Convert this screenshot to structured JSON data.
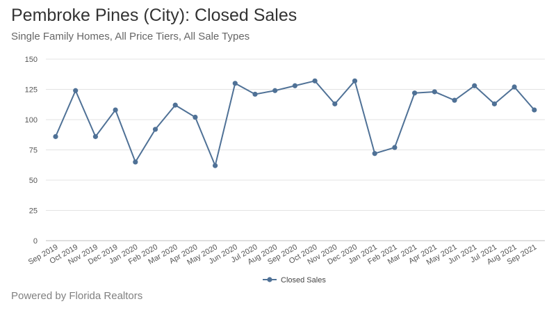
{
  "header": {
    "title": "Pembroke Pines (City): Closed Sales",
    "subtitle": "Single Family Homes, All Price Tiers, All Sale Types"
  },
  "footer": {
    "text": "Powered by Florida Realtors"
  },
  "colors": {
    "series": "#4f7196",
    "grid": "#e3e3e3",
    "axis": "#bfbfbf"
  },
  "chart_data": {
    "type": "line",
    "title": "Pembroke Pines (City): Closed Sales",
    "subtitle": "Single Family Homes, All Price Tiers, All Sale Types",
    "xlabel": "",
    "ylabel": "",
    "ylim": [
      0,
      150
    ],
    "yticks": [
      0,
      25,
      50,
      75,
      100,
      125,
      150
    ],
    "grid": true,
    "legend_position": "bottom",
    "categories": [
      "Sep 2019",
      "Oct 2019",
      "Nov 2019",
      "Dec 2019",
      "Jan 2020",
      "Feb 2020",
      "Mar 2020",
      "Apr 2020",
      "May 2020",
      "Jun 2020",
      "Jul 2020",
      "Aug 2020",
      "Sep 2020",
      "Oct 2020",
      "Nov 2020",
      "Dec 2020",
      "Jan 2021",
      "Feb 2021",
      "Mar 2021",
      "Apr 2021",
      "May 2021",
      "Jun 2021",
      "Jul 2021",
      "Aug 2021",
      "Sep 2021"
    ],
    "series": [
      {
        "name": "Closed Sales",
        "values": [
          86,
          124,
          86,
          108,
          65,
          92,
          112,
          102,
          62,
          130,
          121,
          124,
          128,
          132,
          113,
          132,
          72,
          77,
          122,
          123,
          116,
          128,
          113,
          127,
          108
        ]
      }
    ]
  }
}
